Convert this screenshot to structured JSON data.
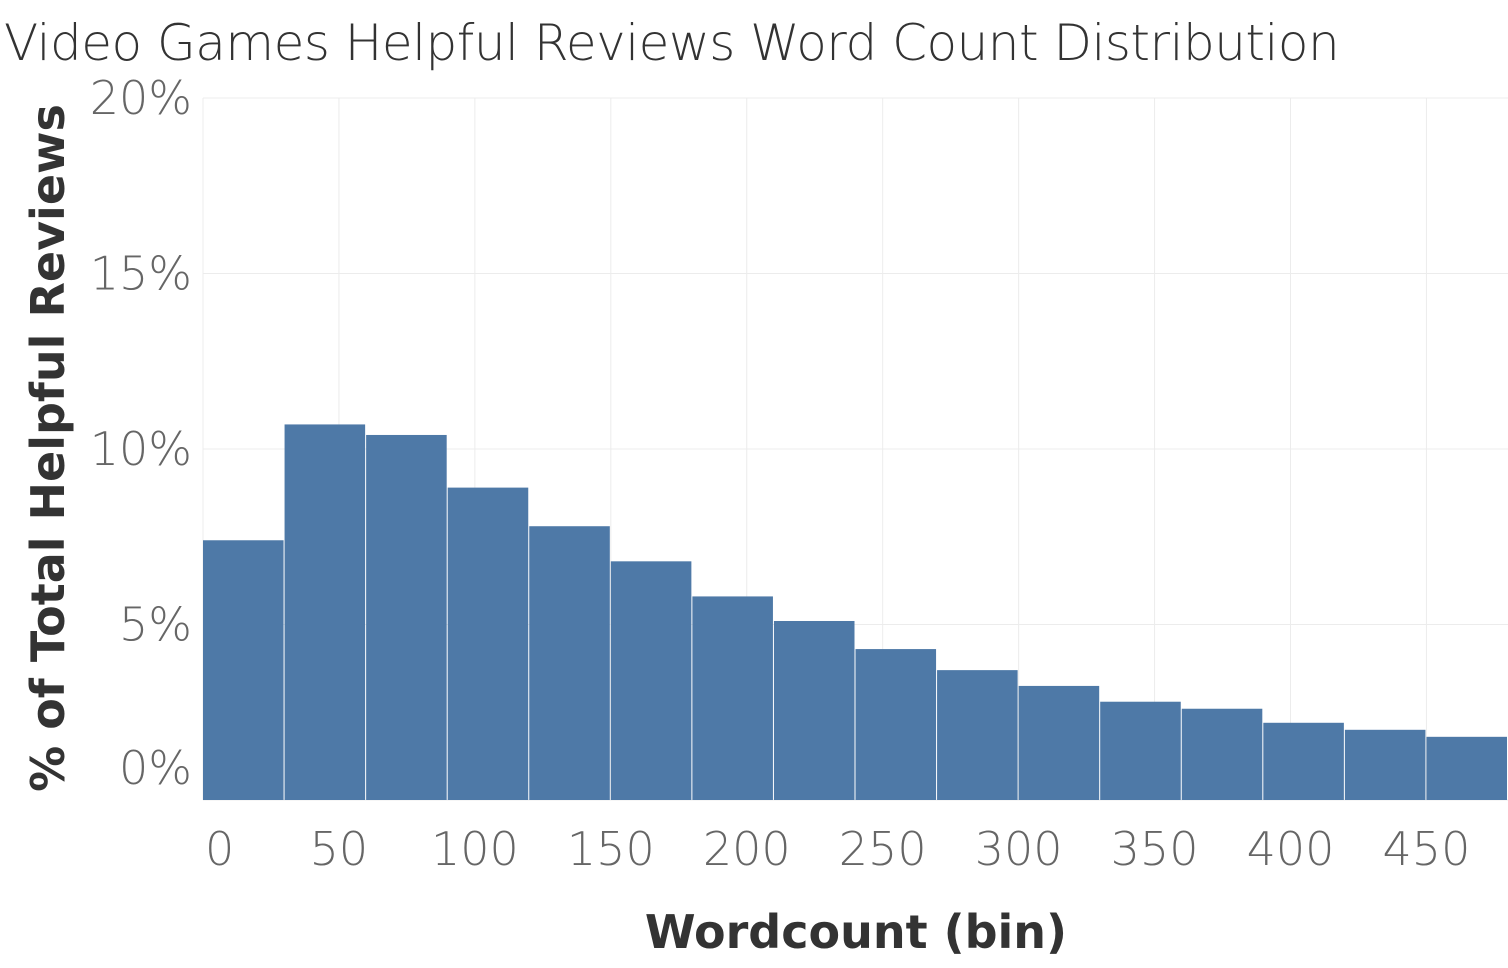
{
  "chart_data": {
    "type": "bar",
    "title": "Video Games Helpful Reviews Word Count Distribution",
    "xlabel": "Wordcount (bin)",
    "ylabel": "% of Total Helpful Reviews",
    "x_bin_width": 30,
    "x_bins": [
      0,
      30,
      60,
      90,
      120,
      150,
      180,
      210,
      240,
      270,
      300,
      330,
      360,
      390,
      420,
      450
    ],
    "values": [
      7.4,
      10.7,
      10.4,
      8.9,
      7.8,
      6.8,
      5.8,
      5.1,
      4.3,
      3.7,
      3.25,
      2.8,
      2.6,
      2.2,
      2.0,
      1.8
    ],
    "xlim": [
      0,
      480
    ],
    "ylim": [
      0,
      20
    ],
    "x_ticks": [
      0,
      50,
      100,
      150,
      200,
      250,
      300,
      350,
      400,
      450
    ],
    "x_tick_labels": [
      "0",
      "50",
      "100",
      "150",
      "200",
      "250",
      "300",
      "350",
      "400",
      "450"
    ],
    "y_ticks": [
      0,
      5,
      10,
      15,
      20
    ],
    "y_tick_labels": [
      "0%",
      "5%",
      "10%",
      "15%",
      "20%"
    ],
    "grid": true,
    "legend": "none",
    "bar_color": "#4e79a7"
  }
}
